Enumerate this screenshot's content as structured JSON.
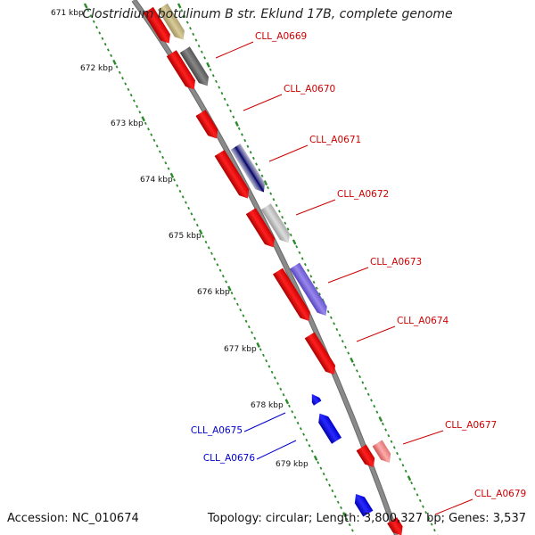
{
  "title": "Clostridium botulinum B str. Eklund 17B, complete genome",
  "footer": {
    "accession": "Accession: NC_010674",
    "summary": "Topology: circular; Length: 3,800,327 bp; Genes: 3,537"
  },
  "ruler": {
    "labels": [
      "671 kbp",
      "672 kbp",
      "673 kbp",
      "674 kbp",
      "675 kbp",
      "676 kbp",
      "677 kbp",
      "678 kbp",
      "679 kbp"
    ]
  },
  "colors": {
    "backbone": "#8a8a8a",
    "tick_green": "#2a8a2a",
    "forward_label": "#cc0000",
    "reverse_label": "#0000cc",
    "reverse_gene": "#0000ee"
  },
  "genes": {
    "forward": [
      "CLL_A0669",
      "CLL_A0670",
      "CLL_A0671",
      "CLL_A0672",
      "CLL_A0673",
      "CLL_A0674",
      "CLL_A0677",
      "CLL_A0679"
    ],
    "reverse": [
      "CLL_A0675",
      "CLL_A0676"
    ]
  }
}
